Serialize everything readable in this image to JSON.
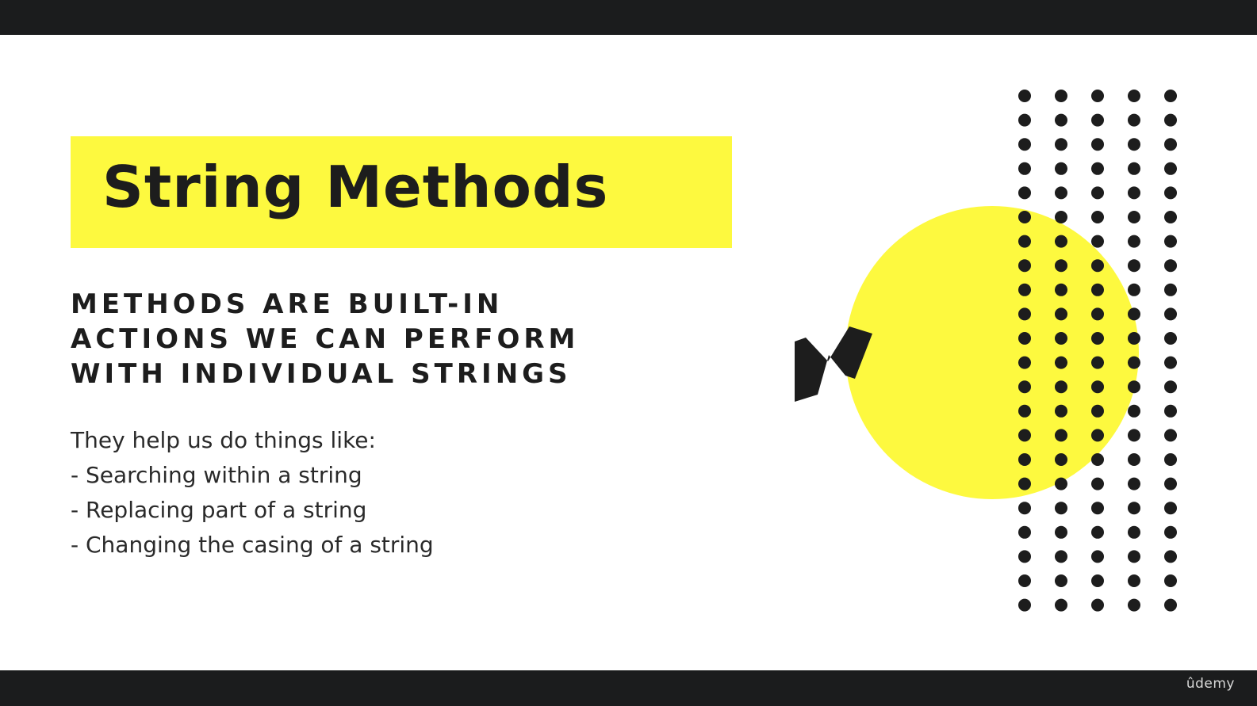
{
  "slide": {
    "title": "String Methods",
    "subheading_lines": [
      "METHODS ARE BUILT-IN",
      "ACTIONS WE CAN PERFORM",
      "WITH INDIVIDUAL STRINGS"
    ],
    "intro": "They help us do things like:",
    "bullets": [
      "- Searching within a string",
      "- Replacing part of a string",
      "- Changing the casing of a string"
    ]
  },
  "branding": {
    "logo_text": "ûdemy"
  },
  "colors": {
    "accent_yellow": "#fdf93f",
    "text_dark": "#1d1d1d",
    "bar_dark": "#1b1c1d",
    "background": "#ffffff"
  },
  "icons": {
    "zigzag": "zigzag-icon",
    "circle": "yellow-circle-shape",
    "dots": "dot-grid-pattern"
  }
}
